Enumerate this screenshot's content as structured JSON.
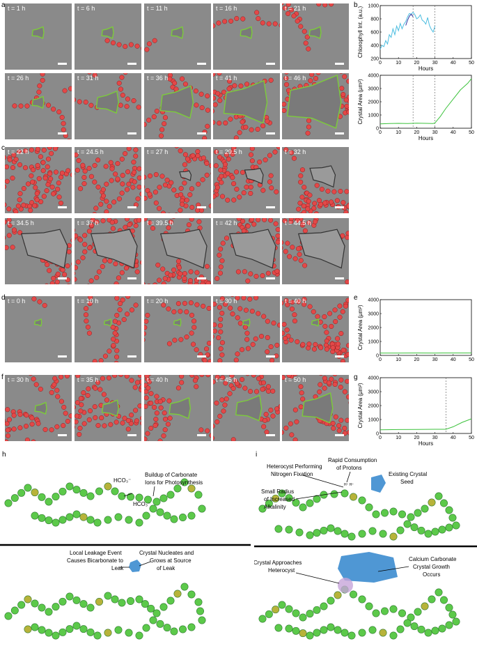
{
  "panel_letters": {
    "a": "a",
    "b": "b",
    "c": "c",
    "d": "d",
    "e": "e",
    "f": "f",
    "g": "g",
    "h": "h",
    "i": "i"
  },
  "rows": {
    "a1": [
      "t = 1 h",
      "t = 6 h",
      "t = 11 h",
      "t = 16 h",
      "t = 21 h"
    ],
    "a2": [
      "t = 26 h",
      "t = 31 h",
      "t = 36 h",
      "t = 41 h",
      "t = 46 h"
    ],
    "c1": [
      "t = 22 h",
      "t = 24.5 h",
      "t = 27 h",
      "t = 29.5 h",
      "t = 32 h"
    ],
    "c2": [
      "t = 34.5 h",
      "t = 37 h",
      "t = 39.5 h",
      "t = 42 h",
      "t = 44.5 h"
    ],
    "d": [
      "t = 0 h",
      "t = 10 h",
      "t = 20 h",
      "t = 30 h",
      "t = 40 h"
    ],
    "f": [
      "t = 30 h",
      "t = 35 h",
      "t = 40 h",
      "t = 45 h",
      "t = 50 h"
    ]
  },
  "colors": {
    "cell": "#e34848",
    "crystal_outline": "#7ccc3a",
    "cell_green": "#5cc94a",
    "heterocyst": "#b7b33a",
    "crystal_blue": "#4f97d4",
    "chl_light": "#4bbde0",
    "chl_dark": "#2b2fa0",
    "area_line": "#3cc23c"
  },
  "chart_data": [
    {
      "type": "line",
      "panel": "b",
      "ylabel": "Chlorophyll Int. (a.u.)",
      "xlabel": "Hours",
      "xlim": [
        0,
        50
      ],
      "ylim": [
        200,
        1000
      ],
      "xticks": [
        "0",
        "10",
        "20",
        "30",
        "40",
        "50"
      ],
      "yticks": [
        "200",
        "400",
        "600",
        "800",
        "1000"
      ],
      "vlines": [
        18,
        30
      ],
      "series": [
        {
          "x": [
            0,
            1,
            2,
            3,
            4,
            5,
            6,
            7,
            8,
            9,
            10,
            11,
            12,
            13,
            14,
            15,
            16,
            17,
            18,
            19,
            20,
            21,
            22,
            23,
            24,
            25,
            26,
            27,
            28,
            29,
            30
          ],
          "y": [
            340,
            400,
            380,
            470,
            420,
            560,
            520,
            650,
            560,
            690,
            620,
            730,
            650,
            720,
            760,
            830,
            880,
            870,
            900,
            860,
            800,
            820,
            860,
            780,
            760,
            720,
            820,
            700,
            640,
            600,
            690
          ]
        },
        {
          "x": [
            14,
            15,
            16,
            17,
            18
          ],
          "y": [
            700,
            780,
            840,
            870,
            830
          ]
        }
      ]
    },
    {
      "type": "line",
      "panel": "b",
      "ylabel": "Crystal Area (µm²)",
      "xlabel": "Hours",
      "xlim": [
        0,
        50
      ],
      "ylim": [
        0,
        4000
      ],
      "xticks": [
        "0",
        "10",
        "20",
        "30",
        "40",
        "50"
      ],
      "yticks": [
        "0",
        "1000",
        "2000",
        "3000",
        "4000"
      ],
      "vlines": [
        18,
        30
      ],
      "series": [
        {
          "x": [
            0,
            5,
            10,
            15,
            20,
            25,
            29,
            30,
            33,
            36,
            40,
            44,
            48,
            50
          ],
          "y": [
            330,
            350,
            370,
            360,
            380,
            370,
            360,
            400,
            900,
            1500,
            2200,
            2900,
            3400,
            3750
          ]
        }
      ]
    },
    {
      "type": "line",
      "panel": "e",
      "ylabel": "Crystal Area (µm²)",
      "xlabel": "",
      "xlim": [
        0,
        50
      ],
      "ylim": [
        0,
        4000
      ],
      "xticks": [
        "0",
        "10",
        "20",
        "30",
        "40",
        "50"
      ],
      "yticks": [
        "0",
        "1000",
        "2000",
        "3000",
        "4000"
      ],
      "vlines": [],
      "series": [
        {
          "x": [
            0,
            10,
            20,
            30,
            40,
            50
          ],
          "y": [
            170,
            170,
            175,
            170,
            175,
            175
          ]
        }
      ]
    },
    {
      "type": "line",
      "panel": "g",
      "ylabel": "Crystal Area (µm²)",
      "xlabel": "Hours",
      "xlim": [
        0,
        50
      ],
      "ylim": [
        0,
        4000
      ],
      "xticks": [
        "0",
        "10",
        "20",
        "30",
        "40",
        "50"
      ],
      "yticks": [
        "0",
        "1000",
        "2000",
        "3000",
        "4000"
      ],
      "vlines": [
        36
      ],
      "series": [
        {
          "x": [
            0,
            10,
            20,
            30,
            36,
            40,
            45,
            50
          ],
          "y": [
            260,
            280,
            290,
            300,
            300,
            480,
            800,
            1050
          ]
        }
      ]
    }
  ],
  "diagram_h": {
    "top_label_1": "HCO₃⁻",
    "top_label_2": "HCO₃⁻",
    "top_label_3a": "Buildup of Carbonate",
    "top_label_3b": "Ions for Photosynthesis",
    "bot_label_1a": "Local Leakage Event",
    "bot_label_1b": "Causes Bicarbonate to",
    "bot_label_1c": "Leak",
    "bot_label_2a": "Crystal Nucleates and",
    "bot_label_2b": "Grows at Source",
    "bot_label_2c": "of Leak"
  },
  "diagram_i": {
    "top_label_1a": "Heterocyst Performing",
    "top_label_1b": "Nitrogen Fixation",
    "top_label_2a": "Rapid Consumption",
    "top_label_2b": "of Protons",
    "top_label_3a": "Existing Crystal",
    "top_label_3b": "Seed",
    "top_label_4a": "Small Radius",
    "top_label_4b": "of Increased",
    "top_label_4c": "Alkalinity",
    "protons": "H⁺ H⁺",
    "bot_label_1a": "Crystal Approaches",
    "bot_label_1b": "Heterocyst",
    "bot_label_2a": "Calcium Carbonate",
    "bot_label_2b": "Crystal Growth",
    "bot_label_2c": "Occurs"
  }
}
